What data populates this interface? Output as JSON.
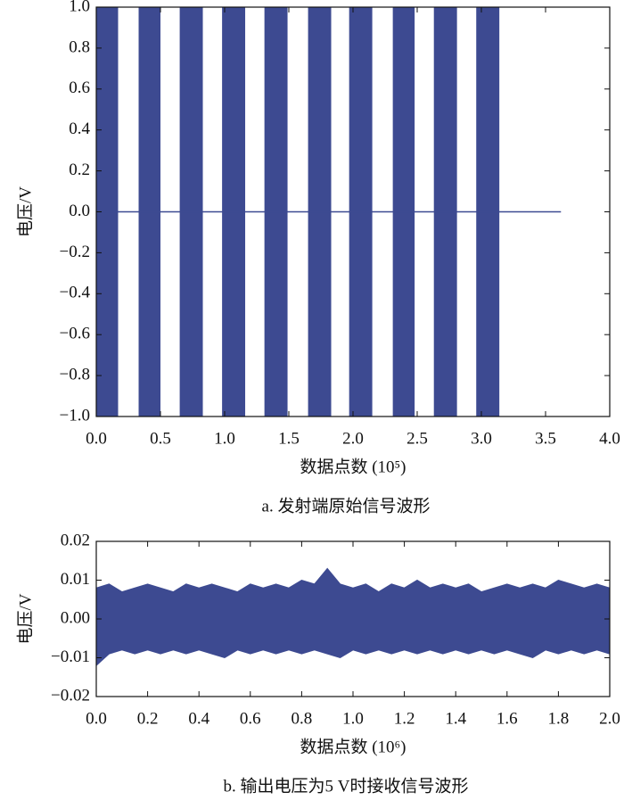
{
  "chart_data": [
    {
      "type": "burst",
      "color": "#3d4a91",
      "xlabel": "数据点数 (10⁵)",
      "ylabel": "电压/V",
      "caption": "a. 发射端原始信号波形",
      "amplitude": 1,
      "bursts": [
        {
          "start": 0,
          "end": 0.17
        },
        {
          "start": 0.33,
          "end": 0.5
        },
        {
          "start": 0.65,
          "end": 0.83
        },
        {
          "start": 0.98,
          "end": 1.16
        },
        {
          "start": 1.31,
          "end": 1.49
        },
        {
          "start": 1.65,
          "end": 1.83
        },
        {
          "start": 1.97,
          "end": 2.15
        },
        {
          "start": 2.31,
          "end": 2.48
        },
        {
          "start": 2.63,
          "end": 2.81
        },
        {
          "start": 2.96,
          "end": 3.14
        }
      ],
      "baseline": {
        "x": [
          0,
          3.62
        ],
        "values": [
          0,
          0
        ]
      },
      "xlim": [
        0,
        4
      ],
      "xticks": [
        {
          "value": 0,
          "label": "0.0"
        },
        0.5,
        {
          "value": 1,
          "label": "1.0"
        },
        1.5,
        {
          "value": 2,
          "label": "2.0"
        },
        2.5,
        {
          "value": 3,
          "label": "3.0"
        },
        3.5,
        {
          "value": 4,
          "label": "4.0"
        }
      ],
      "ylim": [
        -1,
        1
      ],
      "yticks": [
        {
          "value": -1,
          "label": "−1.0"
        },
        {
          "value": -0.8,
          "label": "−0.8"
        },
        {
          "value": -0.6,
          "label": "−0.6"
        },
        {
          "value": -0.4,
          "label": "−0.4"
        },
        {
          "value": -0.2,
          "label": "−0.2"
        },
        {
          "value": 0,
          "label": "0.0"
        },
        0.2,
        0.4,
        0.6,
        0.8,
        {
          "value": 1,
          "label": "1.0"
        }
      ]
    },
    {
      "type": "area",
      "color": "#3d4a91",
      "xlabel": "数据点数 (10⁶)",
      "ylabel": "电压/V",
      "caption": "b. 输出电压为5 V时接收信号波形",
      "x": [
        0,
        0.05,
        0.1,
        0.15,
        0.2,
        0.25,
        0.3,
        0.35,
        0.4,
        0.45,
        0.5,
        0.55,
        0.6,
        0.65,
        0.7,
        0.75,
        0.8,
        0.85,
        0.9,
        0.95,
        1.0,
        1.05,
        1.1,
        1.15,
        1.2,
        1.25,
        1.3,
        1.35,
        1.4,
        1.45,
        1.5,
        1.55,
        1.6,
        1.65,
        1.7,
        1.75,
        1.8,
        1.85,
        1.9,
        1.95,
        2.0
      ],
      "series": [
        {
          "values": [
            0.008,
            0.009,
            0.007,
            0.008,
            0.009,
            0.008,
            0.007,
            0.009,
            0.008,
            0.009,
            0.008,
            0.007,
            0.009,
            0.008,
            0.009,
            0.008,
            0.01,
            0.009,
            0.013,
            0.009,
            0.008,
            0.009,
            0.007,
            0.009,
            0.008,
            0.01,
            0.008,
            0.009,
            0.008,
            0.009,
            0.007,
            0.008,
            0.009,
            0.008,
            0.009,
            0.008,
            0.01,
            0.009,
            0.008,
            0.009,
            0.008
          ]
        },
        {
          "values": [
            -0.012,
            -0.009,
            -0.008,
            -0.009,
            -0.008,
            -0.009,
            -0.008,
            -0.009,
            -0.008,
            -0.009,
            -0.01,
            -0.008,
            -0.009,
            -0.008,
            -0.009,
            -0.008,
            -0.009,
            -0.008,
            -0.009,
            -0.01,
            -0.008,
            -0.009,
            -0.008,
            -0.009,
            -0.008,
            -0.009,
            -0.008,
            -0.009,
            -0.008,
            -0.009,
            -0.008,
            -0.009,
            -0.008,
            -0.009,
            -0.01,
            -0.008,
            -0.009,
            -0.008,
            -0.009,
            -0.008,
            -0.009
          ]
        }
      ],
      "xlim": [
        0,
        2
      ],
      "xticks": [
        {
          "value": 0,
          "label": "0.0"
        },
        0.2,
        0.4,
        0.6,
        0.8,
        {
          "value": 1,
          "label": "1.0"
        },
        1.2,
        1.4,
        1.6,
        1.8,
        {
          "value": 2,
          "label": "2.0"
        }
      ],
      "ylim": [
        -0.02,
        0.02
      ],
      "yticks": [
        {
          "value": -0.02,
          "label": "−0.02"
        },
        {
          "value": -0.01,
          "label": "−0.01"
        },
        {
          "value": 0,
          "label": "0.00"
        },
        0.01,
        0.02
      ]
    }
  ]
}
